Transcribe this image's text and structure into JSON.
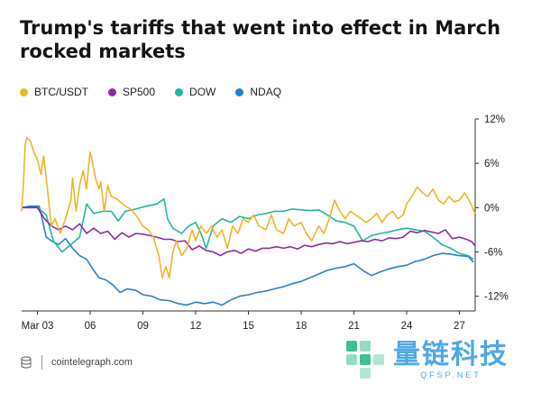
{
  "title": "Trump's tariffs that went into effect in March rocked markets",
  "legend": [
    {
      "name": "BTC/USDT",
      "color": "#f0b429"
    },
    {
      "name": "SP500",
      "color": "#8e2aa6"
    },
    {
      "name": "DOW",
      "color": "#22b5a4"
    },
    {
      "name": "NDAQ",
      "color": "#2b7fcb"
    }
  ],
  "footer": {
    "source": "cointelegraph.com"
  },
  "watermark": {
    "main": "量链科技",
    "sub": "QFSP.NET"
  },
  "chart_data": {
    "type": "line",
    "x_tick_labels": [
      {
        "label": "Mar 03",
        "day": 3
      },
      {
        "label": "06",
        "day": 6
      },
      {
        "label": "09",
        "day": 9
      },
      {
        "label": "12",
        "day": 12
      },
      {
        "label": "15",
        "day": 15
      },
      {
        "label": "18",
        "day": 18
      },
      {
        "label": "21",
        "day": 21
      },
      {
        "label": "24",
        "day": 24
      },
      {
        "label": "27",
        "day": 27
      }
    ],
    "xlim": [
      2.1,
      27.9
    ],
    "ylim": [
      -14,
      12
    ],
    "y_ticks": [
      12,
      6,
      0,
      -6,
      -12
    ],
    "y_tick_labels": [
      "12%",
      "6%",
      "0%",
      "-6%",
      "-12%"
    ],
    "y_axis_side": "right",
    "legend_position": "top-left",
    "grid": false,
    "series": [
      {
        "name": "BTC/USDT",
        "color": "#f0b429",
        "x": [
          2.1,
          2.2,
          2.3,
          2.4,
          2.6,
          2.8,
          3.0,
          3.2,
          3.35,
          3.5,
          3.7,
          3.8,
          4.0,
          4.3,
          4.6,
          4.9,
          5.0,
          5.2,
          5.4,
          5.6,
          5.8,
          5.9,
          6.0,
          6.1,
          6.3,
          6.5,
          6.6,
          6.8,
          7.0,
          7.2,
          7.5,
          8.0,
          8.3,
          8.6,
          9.0,
          9.3,
          9.6,
          9.9,
          10.1,
          10.3,
          10.5,
          10.7,
          10.9,
          11.2,
          11.5,
          11.8,
          12.0,
          12.3,
          12.6,
          12.9,
          13.2,
          13.5,
          13.8,
          14.1,
          14.4,
          14.7,
          15.0,
          15.3,
          15.6,
          16.0,
          16.3,
          16.6,
          17.0,
          17.3,
          17.6,
          18.0,
          18.3,
          18.6,
          19.0,
          19.3,
          19.6,
          19.9,
          20.2,
          20.5,
          20.8,
          21.1,
          21.4,
          21.7,
          22.0,
          22.3,
          22.6,
          22.9,
          23.2,
          23.5,
          23.8,
          24.0,
          24.3,
          24.6,
          24.9,
          25.2,
          25.5,
          25.8,
          26.1,
          26.4,
          26.7,
          27.0,
          27.3,
          27.6,
          27.8,
          27.9
        ],
        "y": [
          -0.5,
          3.0,
          8.5,
          9.5,
          9.0,
          7.5,
          6.5,
          4.5,
          7.0,
          4.0,
          -0.5,
          -2.5,
          -1.5,
          -3.5,
          -1.5,
          1.0,
          4.0,
          -0.5,
          3.0,
          5.0,
          2.5,
          5.5,
          7.5,
          6.5,
          4.0,
          2.5,
          3.5,
          -0.5,
          3.0,
          1.5,
          1.2,
          0.2,
          -0.2,
          -1.0,
          -2.5,
          -3.0,
          -4.0,
          -6.5,
          -9.5,
          -8.0,
          -9.5,
          -6.0,
          -4.5,
          -6.5,
          -5.5,
          -3.0,
          -4.5,
          -2.5,
          -3.5,
          -2.5,
          -4.0,
          -3.0,
          -5.5,
          -2.5,
          -3.5,
          -1.5,
          -2.0,
          -1.0,
          -2.5,
          -3.0,
          -1.0,
          -3.0,
          -3.5,
          -1.5,
          -2.5,
          -2.0,
          -3.5,
          -4.5,
          -2.5,
          -3.5,
          -1.5,
          1.0,
          -0.5,
          -1.5,
          -0.5,
          -1.0,
          -1.5,
          -2.0,
          -1.5,
          -0.8,
          -2.0,
          -1.0,
          -0.5,
          -1.5,
          -1.0,
          0.5,
          1.5,
          2.8,
          2.0,
          1.5,
          2.5,
          1.0,
          0.5,
          1.5,
          0.8,
          1.0,
          2.0,
          0.8,
          -0.3,
          -0.8
        ]
      },
      {
        "name": "SP500",
        "color": "#8e2aa6",
        "x": [
          2.1,
          2.5,
          3.0,
          3.4,
          3.8,
          4.2,
          4.6,
          5.0,
          5.4,
          5.8,
          6.2,
          6.6,
          7.0,
          7.4,
          7.8,
          8.2,
          8.6,
          9.0,
          9.4,
          9.8,
          10.2,
          10.6,
          11.0,
          11.4,
          11.8,
          12.2,
          12.6,
          13.0,
          13.4,
          13.8,
          14.2,
          14.6,
          15.0,
          15.4,
          15.8,
          16.2,
          16.6,
          17.0,
          17.4,
          17.8,
          18.2,
          18.6,
          19.0,
          19.4,
          19.8,
          20.2,
          20.6,
          21.0,
          21.4,
          21.8,
          22.2,
          22.6,
          23.0,
          23.4,
          23.8,
          24.2,
          24.6,
          25.0,
          25.4,
          25.8,
          26.2,
          26.6,
          27.0,
          27.4,
          27.7,
          27.9
        ],
        "y": [
          0,
          0,
          0,
          -1.5,
          -2.5,
          -3.0,
          -2.5,
          -3.0,
          -2.2,
          -3.5,
          -2.8,
          -3.5,
          -3.2,
          -4.3,
          -3.4,
          -4.0,
          -3.5,
          -3.6,
          -3.8,
          -4.0,
          -4.3,
          -4.3,
          -4.6,
          -4.5,
          -5.7,
          -5.2,
          -5.8,
          -6.0,
          -6.5,
          -6.0,
          -5.8,
          -6.2,
          -5.6,
          -5.9,
          -5.5,
          -5.5,
          -5.3,
          -5.5,
          -5.3,
          -5.6,
          -5.1,
          -5.3,
          -5.0,
          -4.8,
          -4.9,
          -4.6,
          -4.9,
          -4.7,
          -4.5,
          -4.6,
          -4.3,
          -4.5,
          -4.1,
          -4.2,
          -4.0,
          -3.2,
          -3.4,
          -3.1,
          -3.3,
          -3.5,
          -3.0,
          -4.2,
          -4.0,
          -4.3,
          -4.6,
          -5.2
        ]
      },
      {
        "name": "DOW",
        "color": "#22b5a4",
        "x": [
          2.1,
          2.5,
          3.0,
          3.5,
          3.9,
          4.4,
          4.9,
          5.4,
          5.8,
          6.2,
          6.7,
          7.2,
          7.6,
          8.0,
          8.6,
          9.2,
          9.8,
          10.2,
          10.4,
          10.7,
          11.2,
          11.6,
          12.0,
          12.3,
          12.6,
          13.0,
          13.5,
          14.0,
          14.5,
          15.0,
          15.5,
          16.0,
          16.5,
          17.0,
          17.5,
          18.0,
          18.5,
          19.0,
          19.5,
          20.0,
          20.5,
          21.0,
          21.5,
          22.0,
          22.5,
          23.0,
          23.5,
          24.0,
          24.5,
          25.0,
          25.5,
          26.0,
          26.5,
          27.0,
          27.5,
          27.8
        ],
        "y": [
          0,
          0,
          0,
          -1.0,
          -4.5,
          -6.0,
          -5.0,
          -4.0,
          0.5,
          -0.8,
          -0.5,
          -0.5,
          -1.8,
          -0.5,
          -0.2,
          0.2,
          0.5,
          1.2,
          -1.5,
          -2.8,
          -3.5,
          -2.5,
          -2.0,
          -3.5,
          -5.5,
          -2.5,
          -1.5,
          -2.0,
          -1.2,
          -1.5,
          -1.0,
          -0.8,
          -0.5,
          -0.5,
          -0.2,
          -0.3,
          -0.4,
          -0.3,
          -1.0,
          -1.8,
          -2.0,
          -2.5,
          -4.5,
          -3.8,
          -3.5,
          -3.3,
          -3.0,
          -2.8,
          -3.0,
          -3.2,
          -4.0,
          -5.0,
          -5.5,
          -6.2,
          -6.5,
          -7.0
        ]
      },
      {
        "name": "NDAQ",
        "color": "#2b7fcb",
        "x": [
          2.1,
          2.6,
          3.1,
          3.5,
          3.8,
          4.2,
          4.6,
          5.0,
          5.4,
          5.8,
          6.2,
          6.5,
          6.9,
          7.3,
          7.7,
          8.1,
          8.6,
          9.0,
          9.5,
          10.0,
          10.5,
          11.0,
          11.5,
          12.0,
          12.5,
          13.0,
          13.5,
          14.0,
          14.5,
          15.0,
          15.5,
          16.0,
          16.5,
          17.0,
          17.5,
          18.0,
          18.5,
          19.0,
          19.5,
          20.0,
          20.5,
          21.0,
          21.5,
          22.0,
          22.5,
          23.0,
          23.5,
          24.0,
          24.5,
          25.0,
          25.5,
          26.0,
          26.5,
          27.0,
          27.5,
          27.8
        ],
        "y": [
          0,
          0.2,
          0.2,
          -4.0,
          -4.5,
          -5.0,
          -4.2,
          -5.5,
          -6.5,
          -7.0,
          -8.5,
          -9.5,
          -9.8,
          -10.5,
          -11.5,
          -11.0,
          -11.2,
          -11.8,
          -12.0,
          -12.5,
          -12.6,
          -13.0,
          -13.2,
          -12.8,
          -13.0,
          -12.8,
          -13.2,
          -12.5,
          -12.0,
          -11.8,
          -11.5,
          -11.3,
          -11.0,
          -10.7,
          -10.3,
          -10.0,
          -9.5,
          -9.0,
          -8.5,
          -8.2,
          -8.0,
          -7.6,
          -8.5,
          -9.2,
          -8.7,
          -8.3,
          -8.0,
          -7.8,
          -7.3,
          -7.0,
          -6.5,
          -6.2,
          -6.3,
          -6.5,
          -6.6,
          -7.4
        ]
      }
    ]
  }
}
